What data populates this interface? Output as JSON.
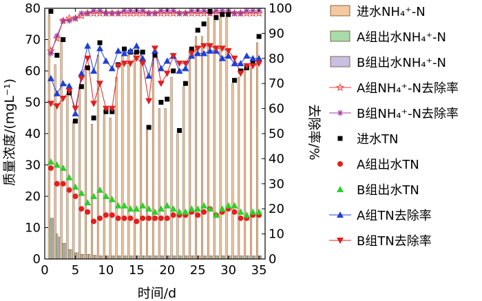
{
  "chart_data": {
    "type": "bar",
    "xlabel": "时间/d",
    "ylabel": "质量浓度/(mgL⁻¹)",
    "y2label": "去除率/%",
    "xlim": [
      0,
      36
    ],
    "ylim": [
      0,
      80
    ],
    "y2lim": [
      0,
      100
    ],
    "xticks": [
      0,
      5,
      10,
      15,
      20,
      25,
      30,
      35
    ],
    "yticks": [
      0,
      10,
      20,
      30,
      40,
      50,
      60,
      70,
      80
    ],
    "y2ticks": [
      0,
      10,
      20,
      30,
      40,
      50,
      60,
      70,
      80,
      90,
      100
    ],
    "legend_position": "right",
    "x": [
      1,
      2,
      3,
      4,
      5,
      6,
      7,
      8,
      9,
      10,
      11,
      12,
      13,
      14,
      15,
      16,
      17,
      18,
      19,
      20,
      21,
      22,
      23,
      24,
      25,
      26,
      27,
      28,
      29,
      30,
      31,
      32,
      33,
      34,
      35
    ],
    "series": [
      {
        "name": "进水NH₄⁺-N",
        "axis": "left",
        "kind": "bar",
        "color": "#f5c9a0",
        "values": [
          78,
          62,
          70,
          52,
          44,
          55,
          60,
          43,
          65,
          46,
          45,
          58,
          65,
          65,
          66,
          65,
          41,
          64,
          48,
          48,
          58,
          40,
          55,
          66,
          71,
          71,
          77,
          76,
          77,
          77,
          56,
          58,
          61,
          61,
          69
        ]
      },
      {
        "name": "A组出水NH₄⁺-N",
        "axis": "left",
        "kind": "bar",
        "color": "#a8dba8",
        "values": [
          13,
          8,
          5,
          3,
          2,
          1.5,
          1.5,
          1.2,
          1,
          1,
          1,
          1,
          1,
          1,
          1,
          1,
          1,
          1,
          1,
          1,
          1,
          1,
          1,
          1,
          1,
          1,
          1,
          1,
          1,
          1,
          1,
          1,
          1,
          1,
          1
        ]
      },
      {
        "name": "B组出水NH₄⁺-N",
        "axis": "left",
        "kind": "bar",
        "color": "#c9bfe0",
        "values": [
          13,
          7,
          5,
          3,
          2,
          1.5,
          1.5,
          1.2,
          1,
          1,
          1,
          1,
          1,
          1,
          1,
          1,
          1,
          1,
          1,
          1,
          1,
          1,
          1,
          1,
          1,
          1,
          1,
          1,
          1,
          1,
          1,
          1,
          1,
          1,
          1
        ]
      },
      {
        "name": "A组NH₄⁺-N去除率",
        "axis": "right",
        "kind": "line",
        "marker": "star",
        "color": "#e8413c",
        "values": [
          83,
          88,
          95,
          96,
          96,
          97,
          98,
          98,
          98,
          98,
          98,
          98,
          98,
          98,
          98,
          98,
          98,
          98,
          98,
          98,
          98,
          98,
          98,
          98,
          98,
          98,
          98,
          98,
          98,
          98,
          98,
          98,
          98,
          98,
          98
        ]
      },
      {
        "name": "B组NH₄⁺-N去除率",
        "axis": "right",
        "kind": "line",
        "marker": "asterisk",
        "color": "#9c3c9c",
        "values": [
          82,
          89,
          95,
          95,
          96,
          98,
          98,
          99,
          99,
          98,
          98,
          98,
          99,
          99,
          99,
          99,
          98,
          98,
          99,
          99,
          99,
          98,
          98,
          99,
          99,
          99,
          98,
          99,
          99,
          99,
          98,
          98,
          99,
          99,
          99
        ]
      },
      {
        "name": "进水TN",
        "axis": "left",
        "kind": "scatter",
        "marker": "square",
        "color": "#000000",
        "values": [
          79,
          65,
          70,
          53,
          44,
          55,
          61,
          45,
          69,
          47,
          47,
          62,
          67,
          66,
          66,
          66,
          42,
          65,
          50,
          51,
          60,
          41,
          56,
          67,
          73,
          75,
          79,
          77,
          78,
          78,
          57,
          60,
          61,
          63,
          71
        ]
      },
      {
        "name": "A组出水TN",
        "axis": "left",
        "kind": "scatter",
        "marker": "circle",
        "color": "#e61e1e",
        "values": [
          29,
          24,
          24,
          22,
          20,
          16,
          15,
          12,
          13,
          14,
          14,
          13,
          13,
          13,
          12,
          13,
          13,
          13,
          13,
          13,
          14,
          14,
          14,
          15,
          14,
          15,
          16,
          14,
          15,
          16,
          15,
          13,
          13,
          14,
          14
        ]
      },
      {
        "name": "B组出水TN",
        "axis": "left",
        "kind": "scatter",
        "marker": "triangle-up",
        "color": "#2ad12a",
        "values": [
          31,
          30,
          29,
          26,
          23,
          21,
          18,
          20,
          22,
          20,
          19,
          17,
          17,
          16,
          16,
          17,
          16,
          15,
          16,
          17,
          16,
          15,
          15,
          16,
          16,
          17,
          16,
          14,
          16,
          17,
          17,
          15,
          14,
          15,
          15
        ]
      },
      {
        "name": "A组TN去除率",
        "axis": "right",
        "kind": "line",
        "marker": "triangle-up",
        "color": "#1f3fd6",
        "values": [
          72,
          66,
          70,
          69,
          58,
          74,
          85,
          75,
          84,
          79,
          76,
          83,
          82,
          83,
          85,
          80,
          73,
          83,
          76,
          79,
          81,
          75,
          76,
          81,
          82,
          82,
          83,
          83,
          80,
          81,
          78,
          78,
          81,
          80,
          80
        ]
      },
      {
        "name": "B组TN去除率",
        "axis": "right",
        "kind": "line",
        "marker": "triangle-down",
        "color": "#e01f1f",
        "values": [
          62,
          61,
          64,
          67,
          60,
          72,
          80,
          62,
          70,
          60,
          60,
          77,
          78,
          78,
          80,
          78,
          63,
          84,
          70,
          74,
          81,
          78,
          78,
          82,
          84,
          85,
          85,
          84,
          84,
          83,
          80,
          74,
          77,
          77,
          78
        ]
      }
    ]
  }
}
